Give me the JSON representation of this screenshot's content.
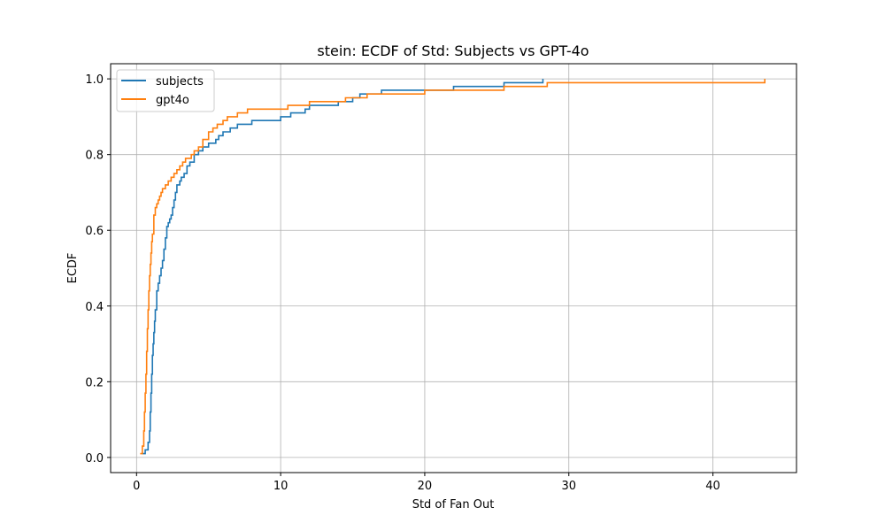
{
  "chart_data": {
    "type": "line",
    "step": "post",
    "title": "stein: ECDF of Std: Subjects vs GPT-4o",
    "xlabel": "Std of Fan Out",
    "ylabel": "ECDF",
    "xlim": [
      -1.8,
      45.8
    ],
    "ylim": [
      -0.04,
      1.04
    ],
    "xticks": [
      0,
      10,
      20,
      30,
      40
    ],
    "yticks": [
      0.0,
      0.2,
      0.4,
      0.6,
      0.8,
      1.0
    ],
    "xtick_labels": [
      "0",
      "10",
      "20",
      "30",
      "40"
    ],
    "ytick_labels": [
      "0.0",
      "0.2",
      "0.4",
      "0.6",
      "0.8",
      "1.0"
    ],
    "grid": true,
    "legend": "upper-left",
    "series": [
      {
        "name": "subjects",
        "color": "#1f77b4",
        "x": [
          0.4,
          0.6,
          0.8,
          0.9,
          0.95,
          1.0,
          1.05,
          1.1,
          1.15,
          1.2,
          1.25,
          1.3,
          1.4,
          1.5,
          1.6,
          1.7,
          1.8,
          1.9,
          2.0,
          2.1,
          2.2,
          2.3,
          2.4,
          2.5,
          2.6,
          2.7,
          2.8,
          3.0,
          3.1,
          3.3,
          3.5,
          3.7,
          4.0,
          4.3,
          4.6,
          4.8,
          5.0,
          5.5,
          5.7,
          6.0,
          6.2,
          6.5,
          7.0,
          7.5,
          8.0,
          10.0,
          10.7,
          11.2,
          11.7,
          12.0,
          14.0,
          15.0,
          15.5,
          17.0,
          22.0,
          25.5,
          28.2
        ],
        "y": [
          0.01,
          0.02,
          0.04,
          0.07,
          0.12,
          0.17,
          0.22,
          0.27,
          0.3,
          0.33,
          0.36,
          0.39,
          0.44,
          0.46,
          0.48,
          0.5,
          0.52,
          0.55,
          0.58,
          0.61,
          0.62,
          0.63,
          0.64,
          0.66,
          0.68,
          0.7,
          0.72,
          0.73,
          0.74,
          0.75,
          0.77,
          0.78,
          0.8,
          0.81,
          0.82,
          0.82,
          0.83,
          0.84,
          0.85,
          0.86,
          0.86,
          0.87,
          0.88,
          0.88,
          0.89,
          0.9,
          0.91,
          0.91,
          0.92,
          0.93,
          0.94,
          0.95,
          0.96,
          0.97,
          0.98,
          0.99,
          1.0
        ]
      },
      {
        "name": "gpt4o",
        "color": "#ff7f0e",
        "x": [
          0.25,
          0.4,
          0.5,
          0.55,
          0.6,
          0.65,
          0.7,
          0.75,
          0.8,
          0.85,
          0.9,
          0.95,
          1.0,
          1.05,
          1.1,
          1.2,
          1.3,
          1.4,
          1.5,
          1.6,
          1.7,
          1.8,
          1.9,
          2.0,
          2.2,
          2.4,
          2.6,
          2.8,
          3.0,
          3.2,
          3.4,
          3.6,
          3.8,
          4.0,
          4.3,
          4.6,
          5.0,
          5.3,
          5.6,
          6.0,
          6.3,
          6.6,
          7.0,
          7.3,
          7.7,
          8.0,
          10.5,
          12.0,
          13.0,
          14.5,
          16.0,
          18.0,
          20.0,
          25.5,
          28.5,
          43.6
        ],
        "y": [
          0.01,
          0.03,
          0.07,
          0.12,
          0.17,
          0.22,
          0.28,
          0.34,
          0.39,
          0.44,
          0.48,
          0.51,
          0.54,
          0.57,
          0.59,
          0.64,
          0.66,
          0.67,
          0.68,
          0.69,
          0.7,
          0.71,
          0.71,
          0.72,
          0.73,
          0.74,
          0.75,
          0.76,
          0.77,
          0.78,
          0.79,
          0.79,
          0.8,
          0.81,
          0.82,
          0.84,
          0.86,
          0.87,
          0.88,
          0.89,
          0.9,
          0.9,
          0.91,
          0.91,
          0.92,
          0.92,
          0.93,
          0.94,
          0.94,
          0.95,
          0.96,
          0.96,
          0.97,
          0.98,
          0.99,
          1.0
        ]
      }
    ]
  }
}
